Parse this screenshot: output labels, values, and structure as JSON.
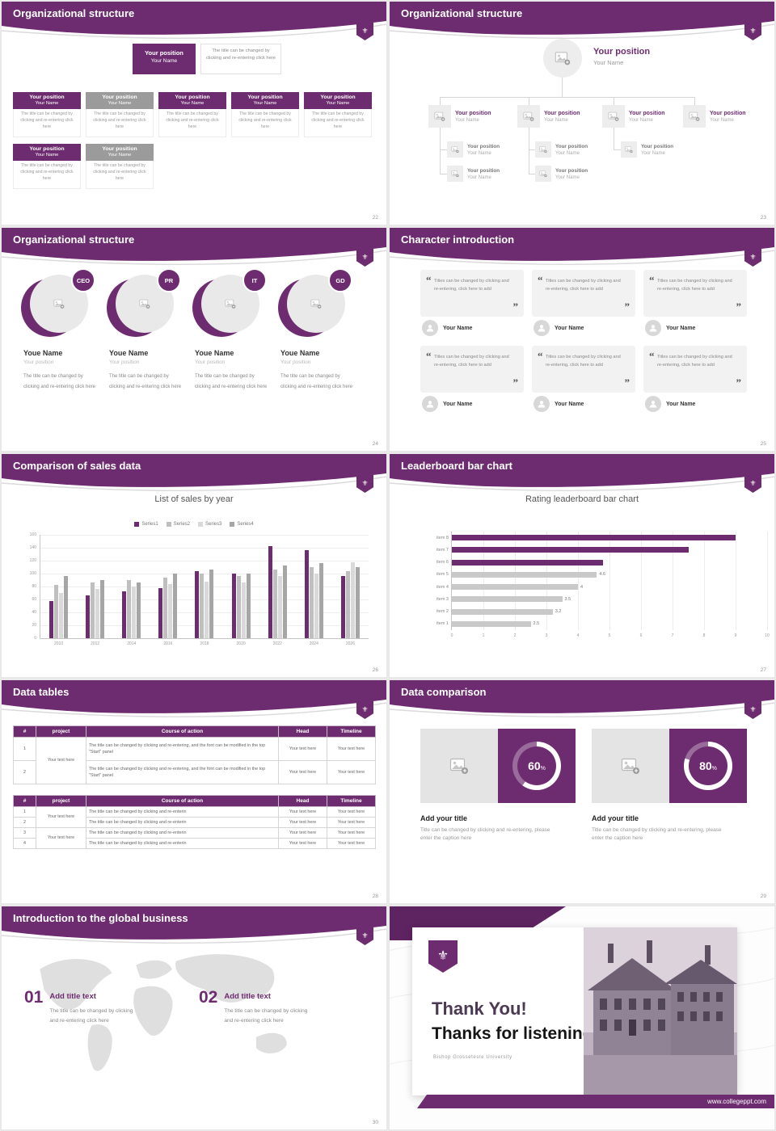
{
  "icons": {
    "crest": "⚜"
  },
  "theme": {
    "purple": "#6E2C70",
    "purple_dark": "#5E2361",
    "gray_header": "#9B9B9B"
  },
  "slides": {
    "org1": {
      "title": "Organizational structure",
      "page": "22",
      "position": "Your position",
      "name": "Your Name",
      "note": "The title can be changed by clicking and re-entering click here",
      "body": "The title can be changed by clicking and re-entering click here"
    },
    "org2": {
      "title": "Organizational structure",
      "page": "23",
      "position": "Your position",
      "name": "Your Name"
    },
    "org3": {
      "title": "Organizational structure",
      "page": "24",
      "roles": [
        "CEO",
        "PR",
        "IT",
        "GD"
      ],
      "name": "Youe Name",
      "position": "Your position",
      "body": "The title can be changed by clicking and re-entering click here"
    },
    "chars": {
      "title": "Character introduction",
      "page": "25",
      "open_quote": "“",
      "close_quote": "”",
      "quote": "Titles can be changed by clicking and re-entering, click here to add",
      "name": "Your Name"
    },
    "sales": {
      "title": "Comparison of sales data",
      "page": "26"
    },
    "leader": {
      "title": "Leaderboard bar chart",
      "page": "27"
    },
    "tables": {
      "title": "Data tables",
      "page": "28",
      "headers": [
        "#",
        "project",
        "Course of action",
        "Head",
        "Timeline"
      ],
      "t1_rows": [
        "1",
        "2"
      ],
      "t2_rows": [
        "1",
        "2",
        "3",
        "4"
      ],
      "long_course": "The title can be changed by clicking and re-entering, and the font can be modified in the top \"Start\" panel",
      "short_course": "The title can be changed by clicking and re-enterin",
      "cell": "Your text here"
    },
    "compare": {
      "title": "Data comparison",
      "page": "29",
      "items": [
        {
          "value": "60",
          "suffix": "%"
        },
        {
          "value": "80",
          "suffix": "%"
        }
      ],
      "item_title": "Add your title",
      "caption": "Title can be changed by clicking and re-entering, please enter the caption here"
    },
    "global": {
      "title": "Introduction to the global business",
      "page": "30",
      "points": [
        {
          "num": "01",
          "title": "Add title text",
          "body": "The title can be changed by clicking and re-entering click here"
        },
        {
          "num": "02",
          "title": "Add title text",
          "body": "The title can be changed by clicking and re-entering click here"
        }
      ]
    },
    "thanks": {
      "line1": "Thank You!",
      "line2": "Thanks for listening!",
      "caption": "Bishop Grosseteste University",
      "website": "www.collegeppt.com"
    }
  },
  "chart_data": [
    {
      "type": "bar",
      "title": "List of sales by year",
      "categories": [
        "2010",
        "2012",
        "2014",
        "2016",
        "2018",
        "2020",
        "2022",
        "2024",
        "2026"
      ],
      "series": [
        {
          "name": "Series1",
          "color": "#6E2C70",
          "values": [
            58,
            66,
            72,
            78,
            104,
            100,
            142,
            136,
            96
          ]
        },
        {
          "name": "Series2",
          "color": "#BFBFBF",
          "values": [
            82,
            86,
            90,
            94,
            100,
            96,
            106,
            110,
            104
          ]
        },
        {
          "name": "Series3",
          "color": "#D9D9D9",
          "values": [
            70,
            76,
            80,
            84,
            88,
            86,
            96,
            100,
            118
          ]
        },
        {
          "name": "Series4",
          "color": "#A6A6A6",
          "values": [
            96,
            90,
            86,
            100,
            106,
            100,
            112,
            116,
            110
          ]
        }
      ],
      "xlabel": "",
      "ylabel": "",
      "ylim": [
        0,
        160
      ],
      "ytick": 20,
      "grid": true,
      "legend_position": "top"
    },
    {
      "type": "bar-horizontal",
      "title": "Rating leaderboard bar chart",
      "categories": [
        "item 8",
        "item 7",
        "item 6",
        "item 5",
        "item 4",
        "item 3",
        "item 2",
        "item 1"
      ],
      "values": [
        9.0,
        7.5,
        4.8,
        4.6,
        4.0,
        3.5,
        3.2,
        2.5
      ],
      "colors": [
        "#6E2C70",
        "#6E2C70",
        "#6E2C70",
        "#C9C9C9",
        "#C9C9C9",
        "#C9C9C9",
        "#C9C9C9",
        "#C9C9C9"
      ],
      "value_labels": [
        "",
        "",
        "",
        "4.6",
        "4",
        "3.5",
        "3.2",
        "2.5"
      ],
      "xlim": [
        0,
        10
      ],
      "xticks": [
        0,
        1,
        2,
        3,
        4,
        5,
        6,
        7,
        8,
        9,
        10
      ],
      "grid": true
    }
  ]
}
